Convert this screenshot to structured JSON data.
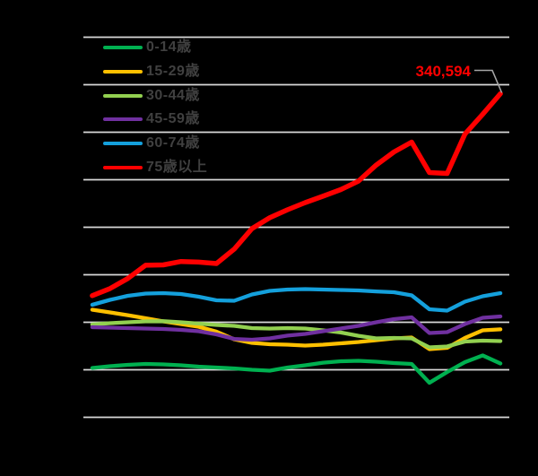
{
  "chart": {
    "background": "#000000",
    "gridline_color": "#D9D9D9",
    "legend_text_color": "#404040",
    "annotation": {
      "text": "340,594",
      "color": "#FF0000",
      "leader_color": "#A6A6A6"
    }
  },
  "chart_data": {
    "type": "line",
    "title": "",
    "num_points": 24,
    "x_axis": {
      "tick_labels_visible": false
    },
    "y_axis": {
      "min": 0,
      "max": 400000,
      "gridline_interval": 50000,
      "tick_labels_visible": false
    },
    "grid": true,
    "legend_position": "top-left",
    "annotation": {
      "text": "340,594",
      "value": 340594,
      "series": "75歳以上",
      "point_index": 23
    },
    "series": [
      {
        "name": "0-14歳",
        "color": "#00B050",
        "values": [
          51900,
          53800,
          55200,
          56100,
          55700,
          54700,
          53300,
          52400,
          51400,
          50000,
          49100,
          52400,
          54700,
          57500,
          59000,
          59400,
          58500,
          57100,
          56100,
          36300,
          47600,
          58000,
          65100,
          56600
        ]
      },
      {
        "name": "15-29歳",
        "color": "#FFC000",
        "values": [
          113200,
          110400,
          107500,
          104200,
          100900,
          98100,
          95300,
          90100,
          82100,
          78300,
          76900,
          76400,
          75500,
          76400,
          77800,
          79200,
          81100,
          83000,
          84000,
          71700,
          73100,
          83500,
          91500,
          92500
        ]
      },
      {
        "name": "30-44歳",
        "color": "#92D050",
        "values": [
          97600,
          99100,
          100000,
          100900,
          101100,
          100000,
          98600,
          97200,
          96200,
          93900,
          93400,
          93900,
          93400,
          91500,
          89200,
          85800,
          83000,
          83500,
          83000,
          73600,
          74500,
          79700,
          80700,
          80200
        ]
      },
      {
        "name": "45-59歳",
        "color": "#7030A0",
        "values": [
          94800,
          94300,
          93900,
          93400,
          92900,
          92000,
          90600,
          87300,
          82500,
          81600,
          83000,
          85900,
          87700,
          90600,
          93400,
          96200,
          100000,
          103300,
          105200,
          88700,
          89600,
          98100,
          104700,
          106100
        ]
      },
      {
        "name": "60-74歳",
        "color": "#14A0DC",
        "values": [
          118400,
          123600,
          127800,
          130200,
          130700,
          129700,
          126900,
          123100,
          122600,
          129200,
          133000,
          134400,
          134900,
          134400,
          134000,
          133500,
          132500,
          131600,
          128300,
          113700,
          112300,
          121700,
          127400,
          130700
        ]
      },
      {
        "name": "75歳以上",
        "color": "#FF0000",
        "values": [
          128000,
          135500,
          146000,
          160000,
          160400,
          164000,
          163300,
          161800,
          177000,
          198600,
          210000,
          218400,
          225900,
          232600,
          239600,
          248600,
          265500,
          279200,
          289600,
          257500,
          256600,
          298000,
          318900,
          340594
        ]
      }
    ]
  }
}
